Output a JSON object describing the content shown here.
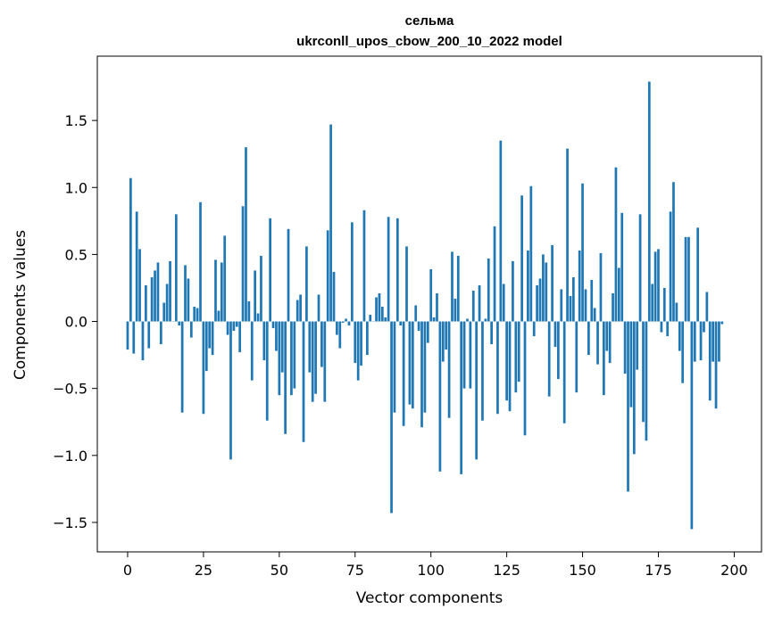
{
  "chart_data": {
    "type": "bar",
    "title": "сельма",
    "subtitle": "ukrconll_upos_cbow_200_10_2022 model",
    "xlabel": "Vector components",
    "ylabel": "Components values",
    "xlim": [
      -10,
      209
    ],
    "ylim": [
      -1.72,
      1.98
    ],
    "xticks": [
      0,
      25,
      50,
      75,
      100,
      125,
      150,
      175,
      200
    ],
    "xtick_labels": [
      "0",
      "25",
      "50",
      "75",
      "100",
      "125",
      "150",
      "175",
      "200"
    ],
    "yticks": [
      -1.5,
      -1.0,
      -0.5,
      0.0,
      0.5,
      1.0,
      1.5
    ],
    "ytick_labels": [
      "−1.5",
      "−1.0",
      "−0.5",
      "0.0",
      "0.5",
      "1.0",
      "1.5"
    ],
    "bar_color": "#1f77b4",
    "grid": false,
    "values": [
      -0.21,
      1.07,
      -0.24,
      0.82,
      0.54,
      -0.29,
      0.27,
      -0.2,
      0.33,
      0.38,
      0.44,
      -0.17,
      0.14,
      0.28,
      0.45,
      0.0,
      0.8,
      -0.03,
      -0.68,
      0.42,
      0.32,
      -0.12,
      0.11,
      0.1,
      0.89,
      -0.69,
      -0.37,
      -0.2,
      -0.25,
      0.46,
      0.08,
      0.44,
      0.64,
      -0.1,
      -1.03,
      -0.07,
      -0.04,
      -0.23,
      0.86,
      1.3,
      0.15,
      -0.44,
      0.38,
      0.06,
      0.49,
      -0.29,
      -0.74,
      0.77,
      -0.05,
      -0.22,
      -0.55,
      -0.38,
      -0.84,
      0.69,
      -0.55,
      -0.5,
      0.16,
      0.2,
      -0.9,
      0.56,
      -0.38,
      -0.6,
      -0.54,
      0.2,
      -0.34,
      -0.6,
      0.68,
      1.47,
      0.37,
      -0.1,
      -0.2,
      -0.01,
      0.02,
      -0.03,
      0.74,
      -0.31,
      -0.44,
      -0.33,
      0.83,
      -0.25,
      0.05,
      0.0,
      0.18,
      0.21,
      0.11,
      0.03,
      0.78,
      -1.43,
      -0.68,
      0.77,
      -0.03,
      -0.78,
      0.56,
      -0.62,
      -0.65,
      0.12,
      -0.07,
      -0.79,
      -0.68,
      -0.16,
      0.39,
      0.03,
      0.21,
      -1.12,
      -0.3,
      -0.21,
      -0.72,
      0.52,
      0.17,
      0.49,
      -1.14,
      -0.5,
      0.02,
      -0.5,
      0.23,
      -1.03,
      0.27,
      -0.74,
      0.02,
      0.47,
      -0.17,
      0.71,
      -0.69,
      1.35,
      0.28,
      -0.59,
      -0.67,
      0.45,
      -0.53,
      -0.45,
      0.94,
      -0.85,
      0.53,
      1.01,
      -0.11,
      0.27,
      0.32,
      0.5,
      0.44,
      -0.56,
      0.57,
      -0.19,
      -0.43,
      0.24,
      -0.76,
      1.29,
      0.19,
      0.33,
      -0.53,
      0.53,
      1.03,
      0.24,
      -0.25,
      0.31,
      0.1,
      -0.32,
      0.51,
      -0.55,
      -0.22,
      -0.31,
      0.21,
      1.15,
      0.4,
      0.81,
      -0.39,
      -1.27,
      -0.64,
      -0.99,
      -0.36,
      0.8,
      -0.75,
      -0.89,
      1.79,
      0.28,
      0.52,
      0.54,
      -0.08,
      0.25,
      -0.11,
      0.82,
      1.04,
      0.14,
      -0.22,
      -0.46,
      0.63,
      0.63,
      -1.55,
      -0.3,
      0.7,
      -0.29,
      -0.08,
      0.22,
      -0.59,
      -0.3,
      -0.65,
      -0.3,
      -0.02
    ]
  }
}
